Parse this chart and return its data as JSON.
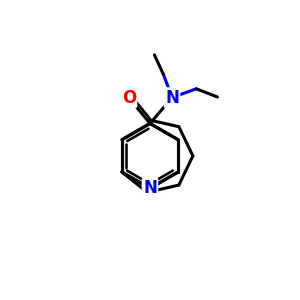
{
  "background": "#ffffff",
  "bond_color": "#000000",
  "N_color": "#0000ff",
  "O_color": "#ff0000",
  "bond_width": 2.2,
  "figsize": [
    3.0,
    3.0
  ],
  "dpi": 100,
  "xlim": [
    0,
    10
  ],
  "ylim": [
    0,
    10
  ]
}
